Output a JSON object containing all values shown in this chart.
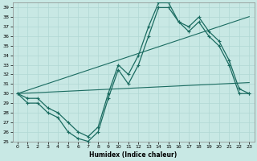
{
  "xlabel": "Humidex (Indice chaleur)",
  "background_color": "#c8e8e4",
  "grid_color": "#b0d8d4",
  "line_color": "#1a6b60",
  "x": [
    0,
    1,
    2,
    3,
    4,
    5,
    6,
    7,
    8,
    9,
    10,
    11,
    12,
    13,
    14,
    15,
    16,
    17,
    18,
    19,
    20,
    21,
    22,
    23
  ],
  "y_line1": [
    30,
    29,
    29,
    28,
    27.5,
    26,
    25.3,
    25,
    26,
    29.5,
    32.5,
    31,
    33,
    36,
    39,
    39,
    37.5,
    36.5,
    37.5,
    36,
    35,
    33,
    30,
    30
  ],
  "y_line2": [
    30,
    29.5,
    29.5,
    28.5,
    28,
    27,
    26,
    25.5,
    26.5,
    30,
    33,
    32,
    34,
    37,
    39.5,
    39.5,
    37.5,
    37,
    38,
    36.5,
    35.5,
    33.5,
    30.5,
    30
  ],
  "y_trend_high": [
    30,
    30.35,
    30.7,
    31.05,
    31.4,
    31.75,
    32.1,
    32.45,
    32.8,
    33.15,
    33.5,
    33.85,
    34.2,
    34.55,
    34.9,
    35.25,
    35.6,
    35.95,
    36.3,
    36.65,
    37.0,
    37.35,
    37.7,
    38.05
  ],
  "y_trend_low": [
    30,
    30.05,
    30.1,
    30.15,
    30.2,
    30.25,
    30.3,
    30.35,
    30.4,
    30.45,
    30.5,
    30.55,
    30.6,
    30.65,
    30.7,
    30.75,
    30.8,
    30.85,
    30.9,
    30.95,
    31.0,
    31.05,
    31.1,
    31.15
  ],
  "ylim": [
    25,
    39.5
  ],
  "xlim": [
    -0.5,
    23.5
  ],
  "yticks": [
    25,
    26,
    27,
    28,
    29,
    30,
    31,
    32,
    33,
    34,
    35,
    36,
    37,
    38,
    39
  ],
  "xticks": [
    0,
    1,
    2,
    3,
    4,
    5,
    6,
    7,
    8,
    9,
    10,
    11,
    12,
    13,
    14,
    15,
    16,
    17,
    18,
    19,
    20,
    21,
    22,
    23
  ],
  "figsize": [
    3.2,
    2.0
  ],
  "dpi": 100
}
